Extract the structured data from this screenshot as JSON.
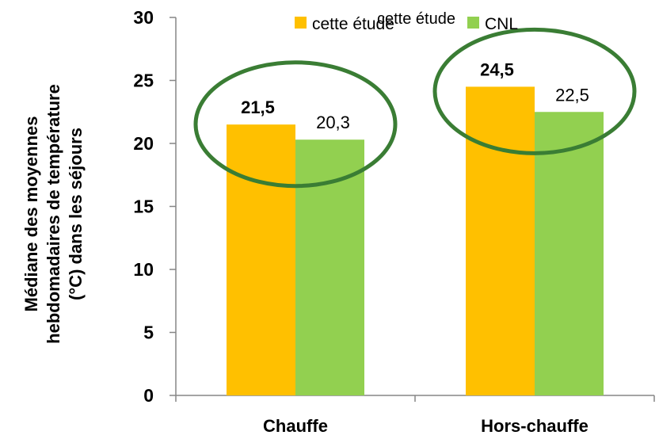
{
  "chart_data": {
    "type": "bar",
    "categories": [
      "Chauffe",
      "Hors-chauffe"
    ],
    "series": [
      {
        "name": "cette étude",
        "values": [
          21.5,
          24.5
        ],
        "labels": [
          "21,5",
          "24,5"
        ],
        "color": "#FFC000",
        "label_bold": true
      },
      {
        "name": "CNL",
        "values": [
          20.3,
          22.5
        ],
        "labels": [
          "20,3",
          "22,5"
        ],
        "color": "#92D050",
        "label_bold": false
      }
    ],
    "ylim": [
      0,
      30
    ],
    "yticks": [
      "0",
      "5",
      "10",
      "15",
      "20",
      "25",
      "30"
    ],
    "ylabel_lines": [
      "Médiane des moyennes",
      "hebdomadaires de température",
      "(°C) dans les séjours"
    ],
    "legend": {
      "position": "top-right",
      "overprinted_text": "cette étude"
    },
    "grid": false,
    "highlight_color": "#3A7D34"
  }
}
